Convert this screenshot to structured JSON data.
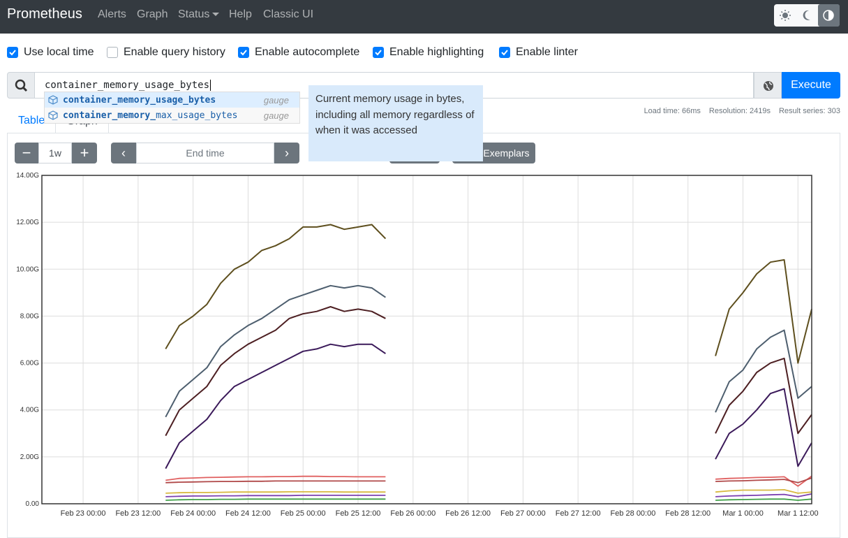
{
  "navbar": {
    "brand": "Prometheus",
    "links": [
      "Alerts",
      "Graph",
      "Status",
      "Help",
      "Classic UI"
    ]
  },
  "options": [
    {
      "label": "Use local time",
      "checked": true
    },
    {
      "label": "Enable query history",
      "checked": false
    },
    {
      "label": "Enable autocomplete",
      "checked": true
    },
    {
      "label": "Enable highlighting",
      "checked": true
    },
    {
      "label": "Enable linter",
      "checked": true
    }
  ],
  "query": {
    "expression": "container_memory_usage_bytes",
    "execute": "Execute"
  },
  "autocomplete": [
    {
      "match": "container_memory_usage_bytes",
      "type": "gauge"
    },
    {
      "match": "container_memory_",
      "rest": "max_usage_bytes",
      "type": "gauge"
    }
  ],
  "tooltip": "Current memory usage in bytes, including all memory regardless of when it was accessed",
  "stats": [
    "Load time: 66ms",
    "Resolution: 2419s",
    "Result series: 303"
  ],
  "tabs": [
    "Table",
    "Graph"
  ],
  "controls": {
    "range": "1w",
    "end_time": "End time",
    "exemplars": "Exemplars"
  },
  "chart_data": {
    "type": "line",
    "x": [
      "Feb 23 18:00",
      "Feb 23 21:00",
      "Feb 24 00:00",
      "Feb 24 03:00",
      "Feb 24 06:00",
      "Feb 24 09:00",
      "Feb 24 12:00",
      "Feb 24 15:00",
      "Feb 24 18:00",
      "Feb 24 21:00",
      "Feb 25 00:00",
      "Feb 25 03:00",
      "Feb 25 06:00",
      "Feb 25 09:00",
      "Feb 25 12:00",
      "Feb 25 15:00",
      "Feb 25 18:00",
      "Feb 27 00:00",
      "Feb 28 18:00",
      "Feb 28 21:00",
      "Mar 1 00:00",
      "Mar 1 03:00",
      "Mar 1 06:00",
      "Mar 1 09:00",
      "Mar 1 12:00",
      "Mar 1 15:00"
    ],
    "series": [
      {
        "color": "#5e4f1e",
        "values": [
          6.6,
          7.6,
          8.0,
          8.5,
          9.4,
          10.0,
          10.3,
          10.8,
          11.0,
          11.3,
          11.8,
          11.8,
          11.9,
          11.7,
          11.8,
          11.9,
          11.3,
          null,
          6.3,
          8.3,
          9.0,
          9.8,
          10.3,
          10.4,
          6.0,
          8.3
        ]
      },
      {
        "color": "#4d5e6e",
        "values": [
          3.7,
          4.8,
          5.3,
          5.8,
          6.7,
          7.2,
          7.6,
          7.9,
          8.3,
          8.7,
          8.9,
          9.1,
          9.3,
          9.2,
          9.3,
          9.2,
          8.8,
          null,
          3.9,
          5.2,
          5.7,
          6.6,
          7.1,
          7.4,
          4.5,
          5.0
        ]
      },
      {
        "color": "#4d1f22",
        "values": [
          2.9,
          4.0,
          4.5,
          5.0,
          5.9,
          6.4,
          6.8,
          7.1,
          7.4,
          7.9,
          8.1,
          8.2,
          8.4,
          8.2,
          8.3,
          8.2,
          7.9,
          null,
          3.0,
          4.2,
          4.8,
          5.6,
          6.0,
          6.2,
          3.0,
          3.8
        ]
      },
      {
        "color": "#3b1a5a",
        "values": [
          1.5,
          2.6,
          3.1,
          3.6,
          4.4,
          5.0,
          5.3,
          5.6,
          5.9,
          6.2,
          6.5,
          6.6,
          6.8,
          6.7,
          6.8,
          6.8,
          6.4,
          null,
          1.9,
          3.0,
          3.4,
          4.0,
          4.7,
          4.9,
          1.6,
          2.6
        ]
      },
      {
        "color": "#e06060",
        "values": [
          1.0,
          1.08,
          1.1,
          1.12,
          1.13,
          1.14,
          1.15,
          1.15,
          1.16,
          1.16,
          1.17,
          1.17,
          1.16,
          1.16,
          1.15,
          1.15,
          1.15,
          null,
          1.05,
          1.08,
          1.1,
          1.12,
          1.13,
          1.15,
          0.75,
          1.18
        ]
      },
      {
        "color": "#b04848",
        "values": [
          0.9,
          0.92,
          0.93,
          0.94,
          0.95,
          0.95,
          0.96,
          0.96,
          0.97,
          0.97,
          0.97,
          0.97,
          0.97,
          0.97,
          0.97,
          0.97,
          0.97,
          null,
          0.95,
          0.97,
          0.98,
          1.0,
          1.02,
          1.04,
          0.9,
          1.1
        ]
      },
      {
        "color": "#d8b840",
        "values": [
          0.45,
          0.47,
          0.48,
          0.48,
          0.49,
          0.5,
          0.5,
          0.5,
          0.5,
          0.51,
          0.51,
          0.51,
          0.51,
          0.5,
          0.5,
          0.5,
          0.5,
          null,
          0.5,
          0.55,
          0.58,
          0.58,
          0.58,
          0.6,
          0.45,
          0.5
        ]
      },
      {
        "color": "#7b3fb0",
        "values": [
          0.3,
          0.32,
          0.33,
          0.33,
          0.34,
          0.34,
          0.35,
          0.35,
          0.35,
          0.35,
          0.36,
          0.36,
          0.36,
          0.36,
          0.36,
          0.36,
          0.36,
          null,
          0.3,
          0.33,
          0.35,
          0.36,
          0.38,
          0.4,
          0.3,
          0.42
        ]
      },
      {
        "color": "#40a048",
        "values": [
          0.15,
          0.17,
          0.18,
          0.18,
          0.19,
          0.19,
          0.2,
          0.2,
          0.2,
          0.2,
          0.2,
          0.2,
          0.2,
          0.2,
          0.2,
          0.2,
          0.2,
          null,
          0.15,
          0.17,
          0.18,
          0.19,
          0.2,
          0.2,
          0.15,
          0.2
        ]
      }
    ],
    "xlim": [
      "Feb 22 15:00",
      "Mar 1 15:00"
    ],
    "xticks": [
      "Feb 23 00:00",
      "Feb 23 12:00",
      "Feb 24 00:00",
      "Feb 24 12:00",
      "Feb 25 00:00",
      "Feb 25 12:00",
      "Feb 26 00:00",
      "Feb 26 12:00",
      "Feb 27 00:00",
      "Feb 27 12:00",
      "Feb 28 00:00",
      "Feb 28 12:00",
      "Mar 1 00:00",
      "Mar 1 12:00"
    ],
    "ylim": [
      0,
      14
    ],
    "yticks": [
      {
        "value": 0,
        "label": "0.00"
      },
      {
        "value": 2,
        "label": "2.00G"
      },
      {
        "value": 4,
        "label": "4.00G"
      },
      {
        "value": 6,
        "label": "6.00G"
      },
      {
        "value": 8,
        "label": "8.00G"
      },
      {
        "value": 10,
        "label": "10.00G"
      },
      {
        "value": 12,
        "label": "12.00G"
      },
      {
        "value": 14,
        "label": "14.00G"
      }
    ],
    "grid": true
  }
}
